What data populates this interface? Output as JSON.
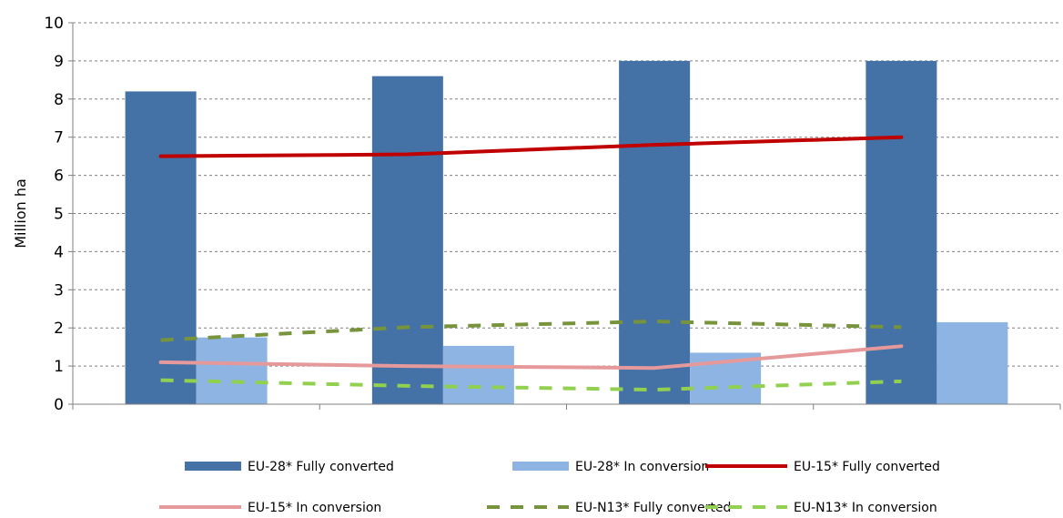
{
  "chart_data": {
    "type": "bar",
    "categories": [
      "",
      "",
      "",
      ""
    ],
    "ylabel": "Million ha",
    "xlabel": "",
    "ylim": [
      0,
      10
    ],
    "yticks": [
      0,
      1,
      2,
      3,
      4,
      5,
      6,
      7,
      8,
      9,
      10
    ],
    "grid": true,
    "legend_position": "bottom",
    "bar_series": [
      {
        "name": "EU-28* Fully converted",
        "color": "#4472a6",
        "values": [
          8.2,
          8.6,
          9.0,
          9.0
        ]
      },
      {
        "name": "EU-28* In conversion",
        "color": "#8db4e2",
        "values": [
          1.75,
          1.53,
          1.35,
          2.15
        ]
      }
    ],
    "line_series": [
      {
        "name": "EU-15* Fully converted",
        "color": "#c00000",
        "dash": "solid",
        "values": [
          6.5,
          6.55,
          6.8,
          7.0
        ]
      },
      {
        "name": "EU-15* In conversion",
        "color": "#e6999b",
        "dash": "solid",
        "values": [
          1.1,
          1.0,
          0.95,
          1.52
        ]
      },
      {
        "name": "EU-N13* Fully converted",
        "color": "#77933c",
        "dash": "dashed",
        "values": [
          1.68,
          2.02,
          2.17,
          2.02
        ]
      },
      {
        "name": "EU-N13* In conversion",
        "color": "#92d050",
        "dash": "dashed",
        "values": [
          0.63,
          0.48,
          0.38,
          0.6
        ]
      }
    ]
  }
}
